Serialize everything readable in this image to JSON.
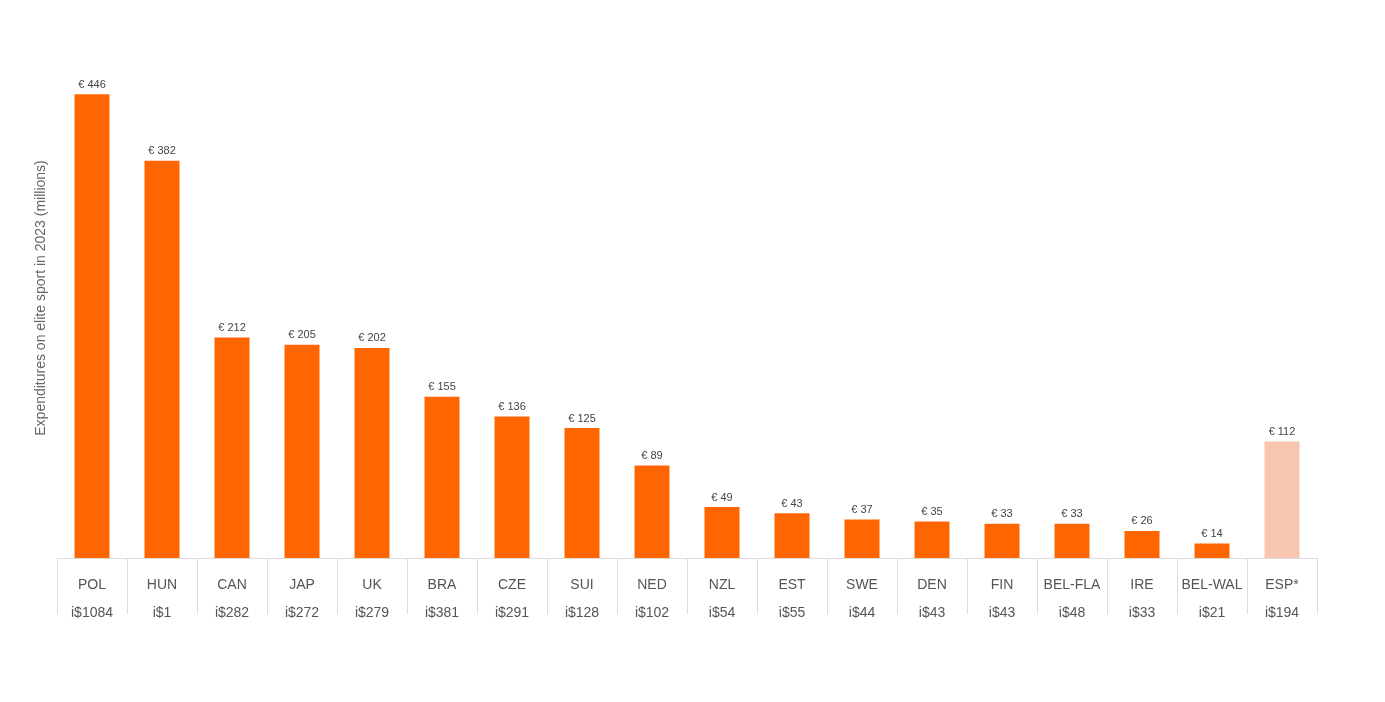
{
  "chart_data": {
    "type": "bar",
    "ylabel": "Expenditures on elite sport in 2023 (millions)",
    "categories": [
      "POL\ni$1084",
      "HUN\ni$1",
      "CAN\ni$282",
      "JAP\ni$272",
      "UK\ni$279",
      "BRA\ni$381",
      "CZE\ni$291",
      "SUI\ni$128",
      "NED\ni$102",
      "NZL\ni$54",
      "EST\ni$55",
      "SWE\ni$44",
      "DEN\ni$43",
      "FIN\ni$43",
      "BEL-FLA\ni$48",
      "IRE\ni$33",
      "BEL-WAL\ni$21",
      "ESP*\ni$194"
    ],
    "values": [
      446,
      382,
      212,
      205,
      202,
      155,
      136,
      125,
      89,
      49,
      43,
      37,
      35,
      33,
      33,
      26,
      14,
      112
    ],
    "colors": [
      "#ff6600",
      "#ff6600",
      "#ff6600",
      "#ff6600",
      "#ff6600",
      "#ff6600",
      "#ff6600",
      "#ff6600",
      "#ff6600",
      "#ff6600",
      "#ff6600",
      "#ff6600",
      "#ff6600",
      "#ff6600",
      "#ff6600",
      "#ff6600",
      "#ff6600",
      "#f8c6ae"
    ],
    "value_labels": [
      "€ 446",
      "€ 382",
      "€ 212",
      "€ 205",
      "€ 202",
      "€ 155",
      "€ 136",
      "€ 125",
      "€ 89",
      "€ 49",
      "€ 43",
      "€ 37",
      "€ 35",
      "€ 33",
      "€ 33",
      "€ 26",
      "€ 14",
      "€ 112"
    ],
    "grid": false
  }
}
